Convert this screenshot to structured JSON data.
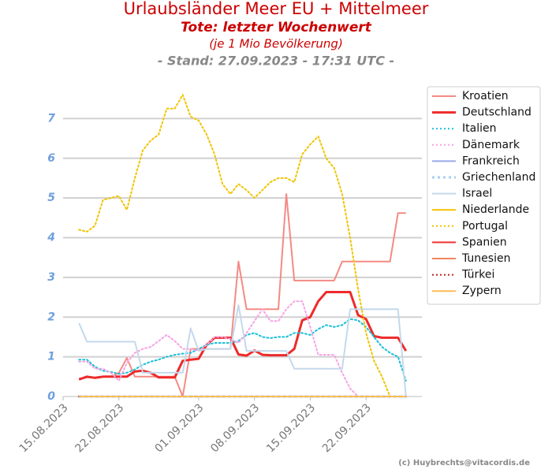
{
  "chart_data": {
    "type": "line",
    "title": "Urlaubsländer Meer EU + Mittelmeer",
    "subtitle": "Tote: letzter Wochenwert",
    "subtitle2": "(je 1 Mio Bevölkerung)",
    "subtitle3": "- Stand: 27.09.2023 - 17:31 UTC -",
    "credit": "(c) Huybrechts@vitacordis.de",
    "x": [
      "17.08.2023",
      "18.08.2023",
      "19.08.2023",
      "20.08.2023",
      "21.08.2023",
      "22.08.2023",
      "23.08.2023",
      "24.08.2023",
      "25.08.2023",
      "26.08.2023",
      "27.08.2023",
      "28.08.2023",
      "29.08.2023",
      "30.08.2023",
      "31.08.2023",
      "01.09.2023",
      "02.09.2023",
      "03.09.2023",
      "04.09.2023",
      "05.09.2023",
      "06.09.2023",
      "07.09.2023",
      "08.09.2023",
      "09.09.2023",
      "10.09.2023",
      "11.09.2023",
      "12.09.2023",
      "13.09.2023",
      "14.09.2023",
      "15.09.2023",
      "16.09.2023",
      "17.09.2023",
      "18.09.2023",
      "19.09.2023",
      "20.09.2023",
      "21.09.2023",
      "22.09.2023",
      "23.09.2023",
      "24.09.2023",
      "25.09.2023",
      "26.09.2023",
      "27.09.2023"
    ],
    "xlim": [
      "15.08.2023",
      "29.09.2023"
    ],
    "xticks": [
      "15.08.2023",
      "22.08.2023",
      "01.09.2023",
      "08.09.2023",
      "15.09.2023",
      "22.09.2023"
    ],
    "ylim": [
      0,
      8
    ],
    "yticks": [
      0,
      1,
      2,
      3,
      4,
      5,
      6,
      7
    ],
    "grid": true,
    "legend": "right",
    "series": [
      {
        "name": "Kroatien",
        "color": "#f48a84",
        "style": "solid",
        "width": 2,
        "values": [
          0.45,
          0.48,
          0.48,
          0.5,
          0.5,
          0.6,
          0.97,
          0.5,
          0.5,
          0.5,
          0.5,
          0.5,
          0.5,
          0,
          1.2,
          1.2,
          1.2,
          1.2,
          1.2,
          1.2,
          3.4,
          2.2,
          2.2,
          2.2,
          2.2,
          2.2,
          5.1,
          2.92,
          2.92,
          2.92,
          2.92,
          2.92,
          2.92,
          3.4,
          3.4,
          3.4,
          3.4,
          3.4,
          3.4,
          3.4,
          4.62,
          4.62
        ]
      },
      {
        "name": "Deutschland",
        "color": "#ee2a2a",
        "style": "solid",
        "width": 3,
        "values": [
          0.43,
          0.5,
          0.47,
          0.5,
          0.5,
          0.5,
          0.5,
          0.63,
          0.65,
          0.6,
          0.48,
          0.48,
          0.48,
          0.9,
          0.93,
          0.95,
          1.3,
          1.48,
          1.48,
          1.48,
          1.06,
          1.03,
          1.16,
          1.05,
          1.04,
          1.04,
          1.04,
          1.2,
          1.92,
          2.0,
          2.4,
          2.63,
          2.63,
          2.63,
          2.63,
          2.05,
          1.95,
          1.52,
          1.48,
          1.48,
          1.48,
          1.15
        ]
      },
      {
        "name": "Italien",
        "color": "#19bfd6",
        "style": "dotted",
        "width": 2,
        "values": [
          0.93,
          0.93,
          0.75,
          0.65,
          0.62,
          0.57,
          0.6,
          0.68,
          0.8,
          0.88,
          0.93,
          1.0,
          1.05,
          1.08,
          1.1,
          1.2,
          1.3,
          1.35,
          1.35,
          1.35,
          1.4,
          1.55,
          1.6,
          1.5,
          1.47,
          1.5,
          1.5,
          1.6,
          1.6,
          1.55,
          1.7,
          1.8,
          1.75,
          1.8,
          1.95,
          1.92,
          1.75,
          1.5,
          1.25,
          1.1,
          1.0,
          0.4
        ]
      },
      {
        "name": "Dänemark",
        "color": "#f7a3e3",
        "style": "dotted",
        "width": 2,
        "values": [
          0.88,
          0.88,
          0.7,
          0.7,
          0.6,
          0.4,
          0.85,
          1.1,
          1.2,
          1.25,
          1.4,
          1.55,
          1.4,
          1.2,
          1.2,
          1.15,
          1.3,
          1.5,
          1.5,
          1.45,
          1.35,
          1.6,
          1.9,
          2.2,
          1.9,
          1.9,
          2.2,
          2.4,
          2.4,
          1.75,
          1.05,
          1.05,
          1.05,
          0.6,
          0.2,
          0,
          0,
          0,
          0,
          0,
          0,
          0
        ]
      },
      {
        "name": "Frankreich",
        "color": "#99a9ea",
        "style": "solid",
        "width": 2,
        "values": [
          0,
          0,
          0,
          0,
          0,
          0,
          0,
          0,
          0,
          0,
          0,
          0,
          0,
          0,
          0,
          0,
          0,
          0,
          0,
          0,
          0,
          0,
          0,
          0,
          0,
          0,
          0,
          0,
          0,
          0,
          0,
          0,
          0,
          0,
          0,
          0,
          0,
          0,
          0,
          0,
          0,
          0
        ]
      },
      {
        "name": "Griechenland",
        "color": "#a9cdef",
        "style": "dotted",
        "width": 3,
        "values": [
          0,
          0,
          0,
          0,
          0,
          0,
          0,
          0,
          0,
          0,
          0,
          0,
          0,
          0,
          0,
          0,
          0,
          0,
          0,
          0,
          0,
          0,
          0,
          0,
          0,
          0,
          0,
          0,
          0,
          0,
          0,
          0,
          0,
          0,
          0,
          0,
          0,
          0,
          0,
          0,
          0,
          0
        ]
      },
      {
        "name": "Israel",
        "color": "#c3d9ec",
        "style": "solid",
        "width": 2,
        "values": [
          1.85,
          1.38,
          1.38,
          1.38,
          1.38,
          1.38,
          1.38,
          1.38,
          0.6,
          0.6,
          0.6,
          0.6,
          0.6,
          0.6,
          1.72,
          1.15,
          1.2,
          1.2,
          1.2,
          1.2,
          2.3,
          1.15,
          1.15,
          1.15,
          1.15,
          1.15,
          1.15,
          0.7,
          0.7,
          0.7,
          0.7,
          0.7,
          0.7,
          0.7,
          2.2,
          2.2,
          2.2,
          2.2,
          2.2,
          2.2,
          2.2,
          0
        ]
      },
      {
        "name": "Niederlande",
        "color": "#f5c000",
        "style": "solid",
        "width": 2,
        "values": [
          0,
          0,
          0,
          0,
          0,
          0,
          0,
          0,
          0,
          0,
          0,
          0,
          0,
          0,
          0,
          0,
          0,
          0,
          0,
          0,
          0,
          0,
          0,
          0,
          0,
          0,
          0,
          0,
          0,
          0,
          0,
          0,
          0,
          0,
          0,
          0,
          0,
          0,
          0,
          0,
          0,
          0
        ]
      },
      {
        "name": "Portugal",
        "color": "#f0c400",
        "style": "dotted",
        "width": 2,
        "values": [
          4.2,
          4.15,
          4.3,
          4.95,
          5.0,
          5.05,
          4.7,
          5.5,
          6.2,
          6.45,
          6.6,
          7.25,
          7.25,
          7.6,
          7.05,
          6.95,
          6.6,
          6.1,
          5.35,
          5.1,
          5.35,
          5.2,
          5.0,
          5.2,
          5.4,
          5.5,
          5.5,
          5.4,
          6.1,
          6.35,
          6.55,
          6.0,
          5.75,
          5.1,
          4.0,
          2.7,
          1.6,
          0.9,
          0.5,
          0,
          0,
          0
        ]
      },
      {
        "name": "Spanien",
        "color": "#f03030",
        "style": "solid",
        "width": 2,
        "values": [
          0,
          0,
          0,
          0,
          0,
          0,
          0,
          0,
          0,
          0,
          0,
          0,
          0,
          0,
          0,
          0,
          0,
          0,
          0,
          0,
          0,
          0,
          0,
          0,
          0,
          0,
          0,
          0,
          0,
          0,
          0,
          0,
          0,
          0,
          0,
          0,
          0,
          0,
          0,
          0,
          0,
          0
        ]
      },
      {
        "name": "Tunesien",
        "color": "#f0855c",
        "style": "solid",
        "width": 2,
        "values": [
          0,
          0,
          0,
          0,
          0,
          0,
          0,
          0,
          0,
          0,
          0,
          0,
          0,
          0,
          0,
          0,
          0,
          0,
          0,
          0,
          0,
          0,
          0,
          0,
          0,
          0,
          0,
          0,
          0,
          0,
          0,
          0,
          0,
          0,
          0,
          0,
          0,
          0,
          0,
          0,
          0,
          0
        ]
      },
      {
        "name": "Türkei",
        "color": "#c02020",
        "style": "dotted",
        "width": 2,
        "values": [
          0,
          0,
          0,
          0,
          0,
          0,
          0,
          0,
          0,
          0,
          0,
          0,
          0,
          0,
          0,
          0,
          0,
          0,
          0,
          0,
          0,
          0,
          0,
          0,
          0,
          0,
          0,
          0,
          0,
          0,
          0,
          0,
          0,
          0,
          0,
          0,
          0,
          0,
          0,
          0,
          0,
          0
        ]
      },
      {
        "name": "Zypern",
        "color": "#ffbb55",
        "style": "solid",
        "width": 2,
        "values": [
          0,
          0,
          0,
          0,
          0,
          0,
          0,
          0,
          0,
          0,
          0,
          0,
          0,
          0,
          0,
          0,
          0,
          0,
          0,
          0,
          0,
          0,
          0,
          0,
          0,
          0,
          0,
          0,
          0,
          0,
          0,
          0,
          0,
          0,
          0,
          0,
          0,
          0,
          0,
          0,
          0,
          0
        ]
      }
    ]
  }
}
